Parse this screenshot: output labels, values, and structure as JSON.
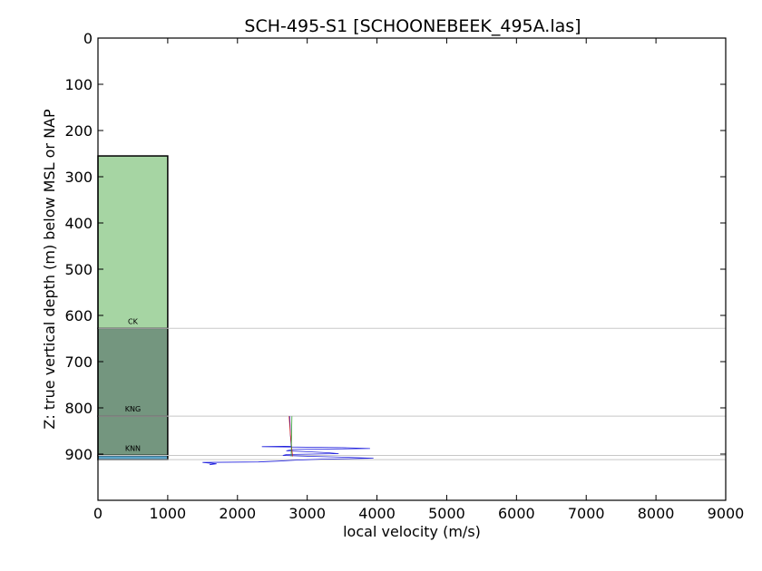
{
  "chart_data": {
    "type": "line",
    "title": "SCH-495-S1 [SCHOONEBEEK_495A.las]",
    "xlabel": "local velocity (m/s)",
    "ylabel": "Z: true vertical depth (m) below MSL or NAP",
    "xlim": [
      0,
      9000
    ],
    "ylim": [
      1000,
      0
    ],
    "y_inverted": true,
    "grid": false,
    "x_ticks": [
      0,
      1000,
      2000,
      3000,
      4000,
      5000,
      6000,
      7000,
      8000,
      9000
    ],
    "y_ticks": [
      0,
      100,
      200,
      300,
      400,
      500,
      600,
      700,
      800,
      900
    ],
    "zones": [
      {
        "name": "",
        "top": 255,
        "base": 628,
        "x_max": 1000,
        "color": "#a6d5a3"
      },
      {
        "name": "CK",
        "top": 628,
        "base": 818,
        "x_max": 1000,
        "color": "#74967f"
      },
      {
        "name": "KNG",
        "top": 818,
        "base": 903,
        "x_max": 1000,
        "color": "#74967f"
      },
      {
        "name": "KNN",
        "top": 903,
        "base": 912,
        "x_max": 1000,
        "color": "#5aa3c8"
      }
    ],
    "horizons": [
      628,
      818,
      903,
      912
    ],
    "series": [
      {
        "color": "#2020dd",
        "points": [
          [
            2750,
            818
          ],
          [
            2760,
            860
          ],
          [
            2770,
            883
          ],
          [
            2350,
            884
          ],
          [
            3500,
            886
          ],
          [
            3900,
            888
          ],
          [
            2800,
            890
          ],
          [
            2700,
            893
          ],
          [
            3000,
            895
          ],
          [
            3300,
            897
          ],
          [
            3450,
            899
          ],
          [
            2700,
            901
          ],
          [
            2650,
            903
          ],
          [
            3100,
            905
          ],
          [
            3600,
            907
          ],
          [
            3950,
            909
          ],
          [
            3200,
            911
          ],
          [
            2850,
            913
          ],
          [
            2600,
            915
          ],
          [
            2300,
            917
          ],
          [
            1500,
            918
          ],
          [
            1700,
            921
          ],
          [
            1600,
            923
          ]
        ]
      },
      {
        "color": "#cc2020",
        "points": [
          [
            2740,
            818
          ],
          [
            2760,
            860
          ],
          [
            2790,
            905
          ]
        ]
      },
      {
        "color": "#30a030",
        "points": [
          [
            2780,
            818
          ],
          [
            2775,
            860
          ],
          [
            2770,
            905
          ]
        ]
      }
    ]
  }
}
